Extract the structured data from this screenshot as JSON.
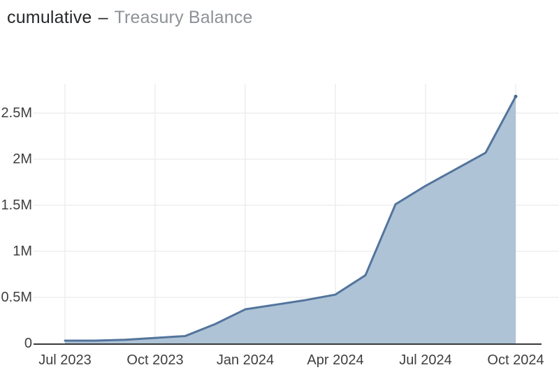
{
  "header": {
    "title_main": "cumulative",
    "title_separator": "–",
    "title_sub": "Treasury Balance"
  },
  "chart_data": {
    "type": "area",
    "title": "cumulative – Treasury Balance",
    "xlabel": "",
    "ylabel": "",
    "unit": "M",
    "grid": true,
    "legend_position": "none",
    "x": [
      "Jul 2023",
      "Aug 2023",
      "Sep 2023",
      "Oct 2023",
      "Nov 2023",
      "Dec 2023",
      "Jan 2024",
      "Feb 2024",
      "Mar 2024",
      "Apr 2024",
      "May 2024",
      "Jun 2024",
      "Jul 2024",
      "Aug 2024",
      "Sep 2024",
      "Oct 2024"
    ],
    "series": [
      {
        "name": "Treasury Balance (cumulative, millions)",
        "values": [
          0.03,
          0.03,
          0.04,
          0.06,
          0.08,
          0.21,
          0.37,
          0.42,
          0.47,
          0.53,
          0.74,
          1.51,
          1.71,
          1.89,
          2.07,
          2.68
        ]
      }
    ],
    "x_tick_labels": [
      "Jul 2023",
      "Oct 2023",
      "Jan 2024",
      "Apr 2024",
      "Jul 2024",
      "Oct 2024"
    ],
    "x_tick_indices": [
      0,
      3,
      6,
      9,
      12,
      15
    ],
    "y_tick_labels": [
      "0",
      "0.5M",
      "1M",
      "1.5M",
      "2M",
      "2.5M"
    ],
    "y_tick_values": [
      0,
      0.5,
      1,
      1.5,
      2,
      2.5
    ],
    "ylim": [
      0,
      2.8
    ],
    "colors": {
      "line": "#53749c",
      "line_tip": "#47688e",
      "fill": "#aec3d6",
      "axis": "#3a3a3a",
      "grid": "#ededed",
      "tick_text": "#3f3f3f",
      "title_main": "#26282b",
      "title_sub": "#8e9297"
    }
  }
}
